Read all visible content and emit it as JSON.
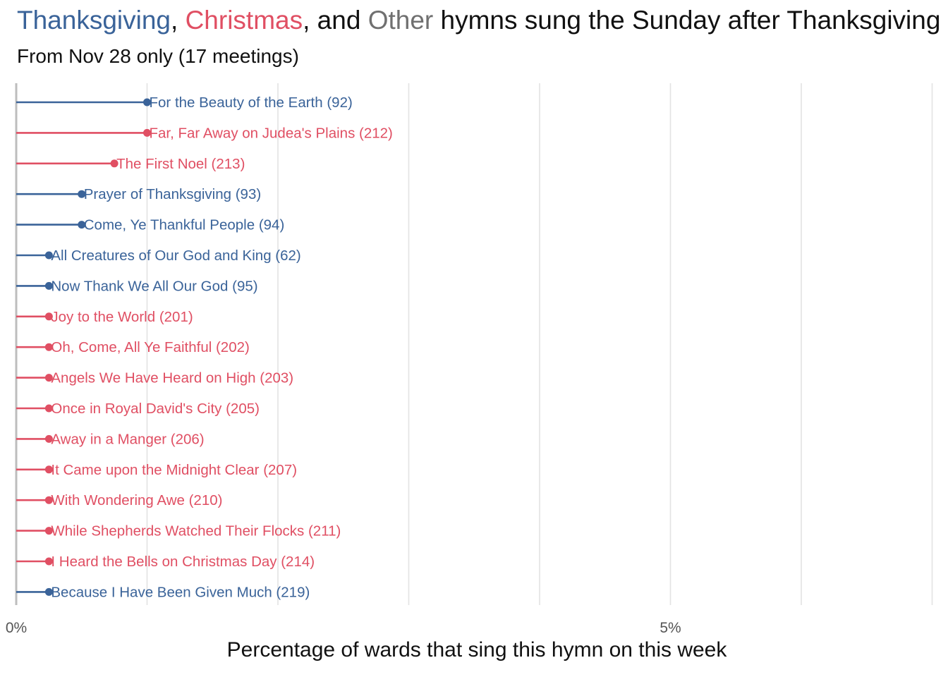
{
  "colors": {
    "thanksgiving": "#3a6399",
    "christmas": "#e04f63",
    "other": "#707070",
    "grid": "#e3e3e3",
    "axis": "#bdbdbd"
  },
  "title": {
    "part_thanksgiving": "Thanksgiving",
    "sep1": ", ",
    "part_christmas": "Christmas",
    "sep2": ", and ",
    "part_other": "Other",
    "rest": " hymns sung the Sunday after Thanksgiving"
  },
  "subtitle": "From Nov 28 only (17 meetings)",
  "chart_data": {
    "type": "lollipop",
    "xlabel": "Percentage of wards that sing this hymn on this week",
    "xlim": [
      0,
      7
    ],
    "x_ticks": [
      0,
      5
    ],
    "x_tick_labels": [
      "0%",
      "5%"
    ],
    "grid": true,
    "series_legend": [
      "Thanksgiving",
      "Christmas",
      "Other"
    ],
    "points": [
      {
        "label": "For the Beauty of the Earth (92)",
        "value": 1.0,
        "category": "thanksgiving"
      },
      {
        "label": "Far, Far Away on Judea's Plains (212)",
        "value": 1.0,
        "category": "christmas"
      },
      {
        "label": "The First Noel (213)",
        "value": 0.75,
        "category": "christmas"
      },
      {
        "label": "Prayer of Thanksgiving (93)",
        "value": 0.5,
        "category": "thanksgiving"
      },
      {
        "label": "Come, Ye Thankful People (94)",
        "value": 0.5,
        "category": "thanksgiving"
      },
      {
        "label": "All Creatures of Our God and King (62)",
        "value": 0.25,
        "category": "thanksgiving"
      },
      {
        "label": "Now Thank We All Our God (95)",
        "value": 0.25,
        "category": "thanksgiving"
      },
      {
        "label": "Joy to the World (201)",
        "value": 0.25,
        "category": "christmas"
      },
      {
        "label": "Oh, Come, All Ye Faithful (202)",
        "value": 0.25,
        "category": "christmas"
      },
      {
        "label": "Angels We Have Heard on High (203)",
        "value": 0.25,
        "category": "christmas"
      },
      {
        "label": "Once in Royal David's City (205)",
        "value": 0.25,
        "category": "christmas"
      },
      {
        "label": "Away in a Manger (206)",
        "value": 0.25,
        "category": "christmas"
      },
      {
        "label": "It Came upon the Midnight Clear (207)",
        "value": 0.25,
        "category": "christmas"
      },
      {
        "label": "With Wondering Awe (210)",
        "value": 0.25,
        "category": "christmas"
      },
      {
        "label": "While Shepherds Watched Their Flocks (211)",
        "value": 0.25,
        "category": "christmas"
      },
      {
        "label": "I Heard the Bells on Christmas Day (214)",
        "value": 0.25,
        "category": "christmas"
      },
      {
        "label": "Because I Have Been Given Much (219)",
        "value": 0.25,
        "category": "thanksgiving"
      }
    ]
  }
}
